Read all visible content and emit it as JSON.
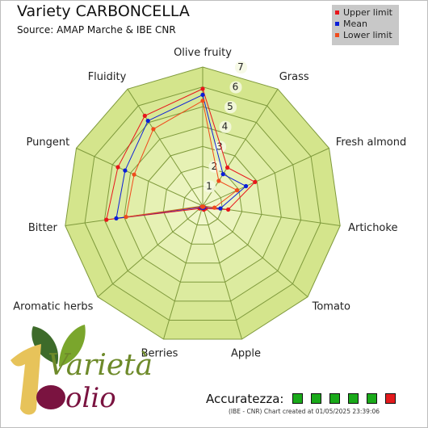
{
  "header": {
    "title": "Variety CARBONCELLA",
    "subtitle": "Source: AMAP Marche & IBE CNR"
  },
  "chart_data": {
    "type": "radar",
    "axes": [
      "Olive fruity",
      "Grass",
      "Fresh almond",
      "Artichoke",
      "Tomato",
      "Apple",
      "Berries",
      "Aromatic herbs",
      "Bitter",
      "Pungent",
      "Fluidity"
    ],
    "scale": {
      "min": 0,
      "max": 7,
      "ticks": [
        "1",
        "2",
        "3",
        "4",
        "5",
        "6",
        "7"
      ]
    },
    "series": [
      {
        "name": "Upper limit",
        "color": "#e8151b",
        "values": [
          5.9,
          2.3,
          2.9,
          1.3,
          0.2,
          0.2,
          0.1,
          0.2,
          4.9,
          4.7,
          5.4
        ]
      },
      {
        "name": "Mean",
        "color": "#0b1ed8",
        "values": [
          5.6,
          1.9,
          2.4,
          0.9,
          0.1,
          0.1,
          0.1,
          0.1,
          4.4,
          4.3,
          5.1
        ]
      },
      {
        "name": "Lower limit",
        "color": "#f04b1c",
        "values": [
          5.3,
          1.5,
          1.9,
          0.6,
          0.05,
          0.05,
          0.05,
          0.05,
          3.9,
          3.8,
          4.6
        ]
      }
    ]
  },
  "logo": {
    "line1": "Varietà",
    "line2": "olio"
  },
  "accuracy": {
    "label": "Accuratezza:",
    "boxes": [
      "#1aaa1a",
      "#1aaa1a",
      "#1aaa1a",
      "#1aaa1a",
      "#1aaa1a",
      "#e31a1c"
    ]
  },
  "credit": "(IBE - CNR) Chart created at 01/05/2025 23:39:06"
}
